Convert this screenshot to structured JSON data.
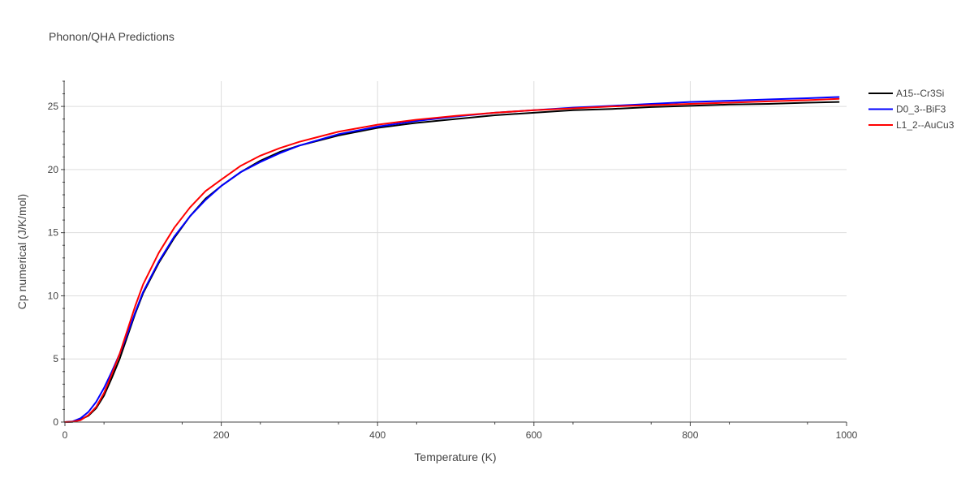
{
  "chart_data": {
    "type": "line",
    "title": "Phonon/QHA Predictions",
    "xlabel": "Temperature (K)",
    "ylabel": "Cp numerical (J/K/mol)",
    "xlim": [
      0,
      1000
    ],
    "ylim": [
      0,
      27
    ],
    "x_ticks": [
      0,
      200,
      400,
      600,
      800,
      1000
    ],
    "y_ticks": [
      0,
      5,
      10,
      15,
      20,
      25
    ],
    "grid": true,
    "legend_position": "top-right",
    "x": [
      0,
      10,
      20,
      30,
      40,
      50,
      60,
      70,
      80,
      90,
      100,
      120,
      140,
      160,
      180,
      200,
      225,
      250,
      275,
      300,
      350,
      400,
      450,
      500,
      550,
      600,
      650,
      700,
      750,
      800,
      850,
      900,
      950,
      990
    ],
    "series": [
      {
        "name": "A15--Cr3Si",
        "color": "#000000",
        "values": [
          0,
          0.02,
          0.2,
          0.5,
          1.1,
          2.1,
          3.5,
          5.0,
          6.8,
          8.6,
          10.2,
          12.6,
          14.6,
          16.3,
          17.7,
          18.7,
          19.8,
          20.7,
          21.4,
          21.9,
          22.7,
          23.3,
          23.7,
          24.0,
          24.3,
          24.5,
          24.7,
          24.8,
          24.95,
          25.05,
          25.15,
          25.2,
          25.3,
          25.35
        ]
      },
      {
        "name": "D0_3--BiF3",
        "color": "#0000ff",
        "values": [
          0,
          0.05,
          0.3,
          0.8,
          1.6,
          2.7,
          4.0,
          5.4,
          7.0,
          8.7,
          10.3,
          12.7,
          14.7,
          16.3,
          17.6,
          18.7,
          19.8,
          20.6,
          21.3,
          21.9,
          22.8,
          23.4,
          23.85,
          24.2,
          24.5,
          24.7,
          24.9,
          25.05,
          25.2,
          25.35,
          25.45,
          25.55,
          25.65,
          25.75
        ]
      },
      {
        "name": "L1_2--AuCu3",
        "color": "#ff0000",
        "values": [
          0,
          0.03,
          0.15,
          0.55,
          1.2,
          2.3,
          3.8,
          5.4,
          7.3,
          9.2,
          10.9,
          13.4,
          15.4,
          17.0,
          18.3,
          19.2,
          20.3,
          21.1,
          21.7,
          22.2,
          23.0,
          23.55,
          23.95,
          24.25,
          24.5,
          24.7,
          24.85,
          25.0,
          25.1,
          25.2,
          25.3,
          25.4,
          25.5,
          25.6
        ]
      }
    ]
  }
}
